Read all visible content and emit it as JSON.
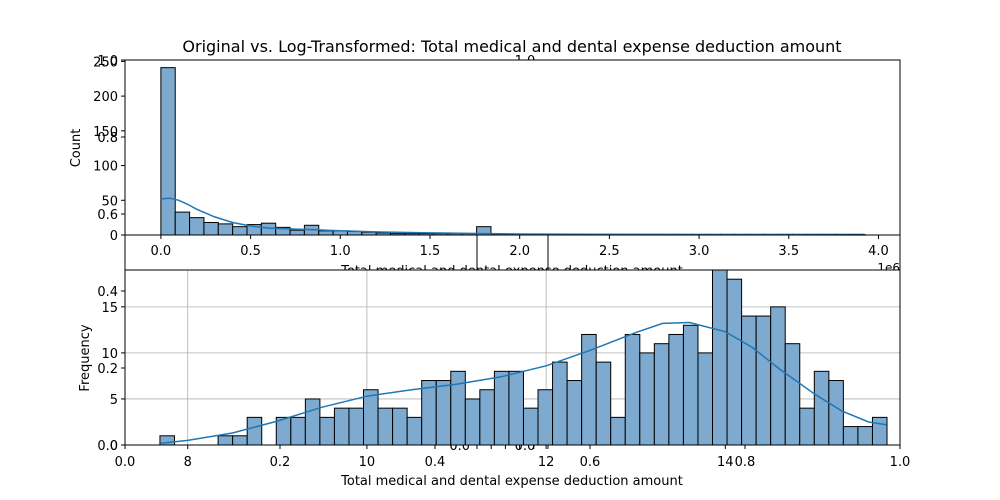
{
  "figure_title": "Original vs. Log-Transformed: Total medical and dental expense deduction amount",
  "chart_data": [
    {
      "type": "bar",
      "panel": "top-original",
      "title": "Original vs. Log-Transformed: Total medical and dental expense deduction amount",
      "xlabel": "Total medical and dental expense deduction amount",
      "ylabel": "Count",
      "x_offset_text": "1e6",
      "xlim": [
        -0.2,
        4.12
      ],
      "ylim": [
        0,
        252
      ],
      "xticks": [
        0.0,
        0.5,
        1.0,
        1.5,
        2.0,
        2.5,
        3.0,
        3.5,
        4.0
      ],
      "xtick_labels": [
        "0.0",
        "0.5",
        "1.0",
        "1.5",
        "2.0",
        "2.5",
        "3.0",
        "3.5",
        "4.0"
      ],
      "yticks": [
        0,
        50,
        100,
        150,
        200,
        250
      ],
      "ytick_labels": [
        "0",
        "50",
        "100",
        "150",
        "200",
        "250"
      ],
      "bin_start": 0.0,
      "bin_width": 0.08,
      "counts": [
        241,
        33,
        25,
        18,
        16,
        12,
        15,
        17,
        11,
        7,
        14,
        6,
        6,
        5,
        4,
        3,
        2,
        2,
        2,
        2,
        2,
        2,
        12,
        1,
        1,
        1,
        1,
        1,
        1,
        1,
        1,
        1,
        1,
        1,
        1,
        1,
        1,
        1,
        1,
        1,
        1,
        1,
        1,
        1,
        1,
        1,
        1,
        1,
        1
      ],
      "kde": {
        "x": [
          0.0,
          0.05,
          0.1,
          0.15,
          0.2,
          0.3,
          0.4,
          0.5,
          0.6,
          0.8,
          1.0,
          1.2,
          1.5,
          2.0,
          2.5,
          3.0,
          3.5,
          3.93
        ],
        "y": [
          52,
          53,
          50,
          44,
          37,
          26,
          18,
          13,
          10,
          8,
          6,
          4.5,
          3,
          1.5,
          0.8,
          0.5,
          0.3,
          0.2
        ]
      },
      "bar_color": "#7EAAD0",
      "line_color": "#1F77B4",
      "grid": false
    },
    {
      "type": "bar",
      "panel": "bottom-log",
      "xlabel": "Total medical and dental expense deduction amount",
      "ylabel": "Frequency",
      "xlim": [
        7.3,
        15.95
      ],
      "ylim": [
        0,
        19
      ],
      "xticks": [
        8,
        10,
        12,
        14
      ],
      "xtick_labels": [
        "8",
        "10",
        "12",
        "14"
      ],
      "yticks": [
        0,
        5,
        10,
        15
      ],
      "ytick_labels": [
        "0",
        "5",
        "10",
        "15"
      ],
      "bin_start": 7.69,
      "bin_width": 0.1623,
      "counts": [
        1,
        0,
        0,
        0,
        1,
        1,
        3,
        0,
        3,
        3,
        5,
        3,
        4,
        4,
        6,
        4,
        4,
        3,
        7,
        7,
        8,
        5,
        6,
        8,
        8,
        4,
        6,
        9,
        7,
        12,
        9,
        3,
        12,
        10,
        11,
        12,
        13,
        10,
        19,
        18,
        14,
        14,
        15,
        11,
        4,
        8,
        7,
        2,
        2,
        3
      ],
      "kde": {
        "x": [
          7.7,
          8.0,
          8.5,
          9.0,
          9.5,
          10.0,
          10.5,
          11.0,
          11.5,
          12.0,
          12.5,
          13.0,
          13.3,
          13.6,
          14.0,
          14.3,
          14.6,
          15.0,
          15.3,
          15.6,
          15.8
        ],
        "y": [
          0.2,
          0.5,
          1.3,
          2.6,
          4.1,
          5.3,
          6.0,
          6.6,
          7.4,
          8.6,
          10.3,
          12.2,
          13.2,
          13.3,
          12.3,
          10.6,
          8.3,
          5.5,
          3.7,
          2.5,
          2.2
        ]
      },
      "bar_color": "#7EAAD0",
      "line_color": "#1F77B4",
      "grid": true
    },
    {
      "type": "line",
      "panel": "overlapping-empty-axes",
      "note_free": true,
      "axes": [
        {
          "xticks": [
            0.0,
            0.2,
            0.4,
            0.6,
            0.8,
            1.0
          ],
          "xtick_labels": [
            "0.0",
            "0.2",
            "0.4",
            "0.6",
            "0.8",
            "1.0"
          ],
          "yticks": [
            0.0,
            0.2,
            0.4,
            0.6,
            0.8,
            1.0
          ],
          "ytick_labels": [
            "0.0",
            "0.2",
            "0.4",
            "0.6",
            "0.8",
            "1.0"
          ]
        },
        {
          "xticks": [
            0.0,
            0.2,
            0.4,
            0.6,
            0.8,
            1.0
          ],
          "xtick_labels": [
            "0.0",
            "0.2",
            "0.4",
            "0.6",
            "0.8",
            "1.0"
          ],
          "yticks": [
            0.0,
            0.2,
            0.4
          ],
          "ytick_labels": [
            "0.0",
            "0.2",
            "0.4"
          ]
        }
      ]
    }
  ]
}
